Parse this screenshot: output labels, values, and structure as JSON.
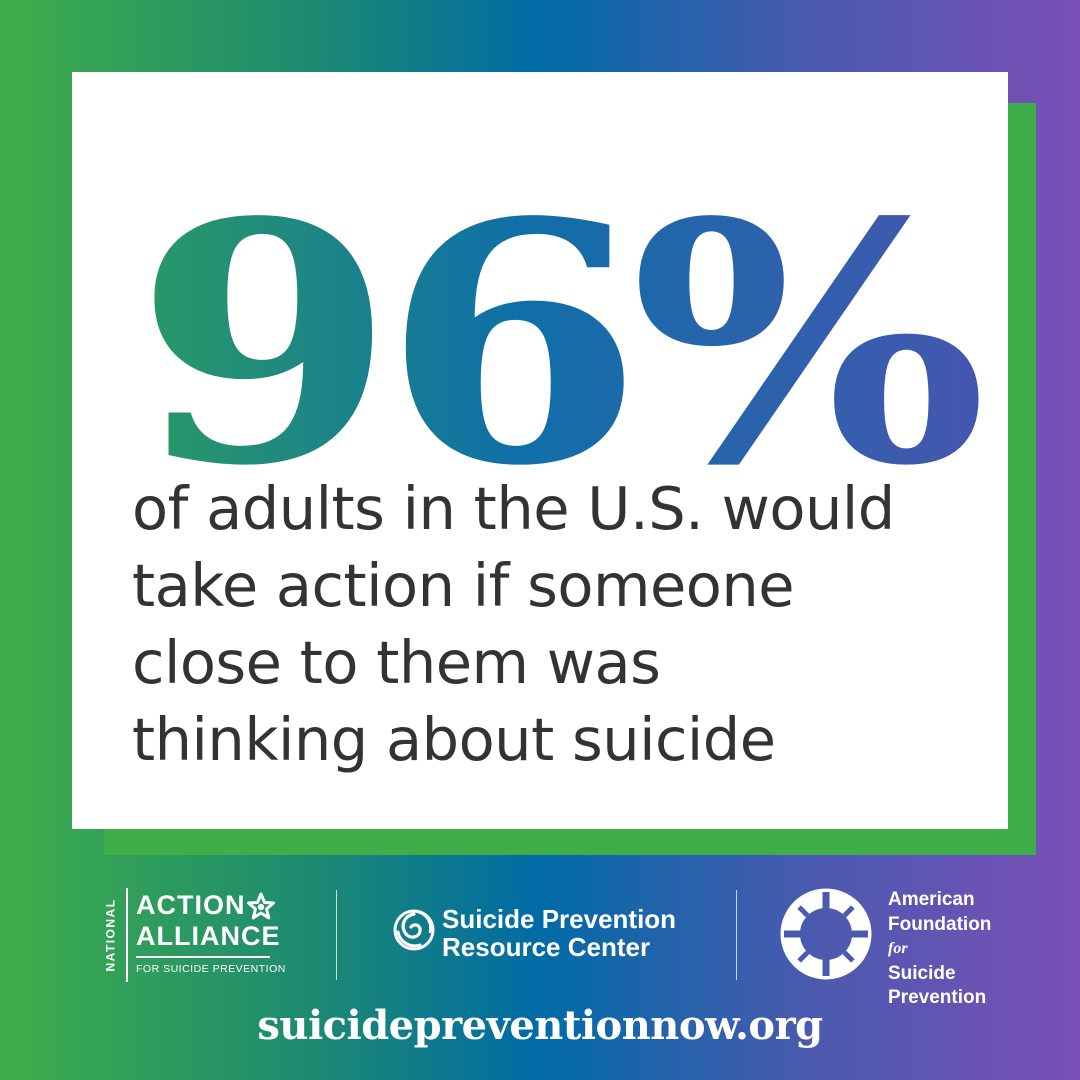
{
  "stat": {
    "value": "96%",
    "caption_lines": [
      "of adults in the U.S. would",
      "take action if someone",
      "close to them was",
      "thinking about suicide"
    ]
  },
  "partners": {
    "action_alliance": {
      "vertical": "NATIONAL",
      "line1": "ACTION",
      "line2": "ALLIANCE",
      "line3": "FOR SUICIDE PREVENTION"
    },
    "sprc": {
      "line1": "Suicide Prevention",
      "line2": "Resource Center"
    },
    "afsp": {
      "line1": "American",
      "line2": "Foundation",
      "for": "for",
      "line3": "Suicide",
      "line4": "Prevention"
    }
  },
  "footer": {
    "url": "suicidepreventionnow.org"
  },
  "colors": {
    "green": "#3fae49",
    "teal": "#1e8b6f",
    "blue": "#006ba6",
    "purple": "#7a4fb6",
    "text_dark": "#333333"
  }
}
